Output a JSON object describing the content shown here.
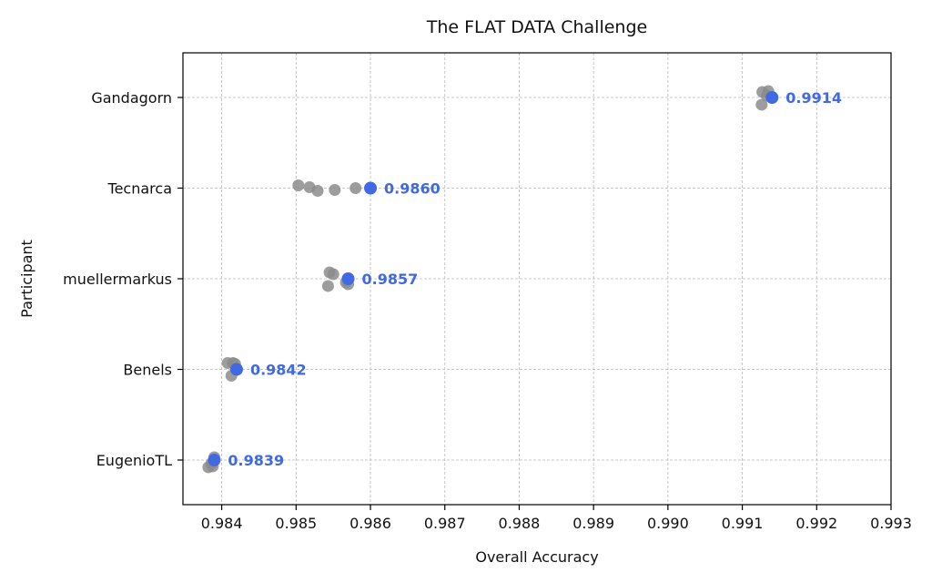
{
  "chart_data": {
    "type": "scatter",
    "title": "The FLAT DATA Challenge",
    "xlabel": "Overall Accuracy",
    "ylabel": "Participant",
    "xlim": [
      0.9835,
      0.993
    ],
    "xticks": [
      "0.984",
      "0.985",
      "0.986",
      "0.987",
      "0.988",
      "0.989",
      "0.990",
      "0.991",
      "0.992",
      "0.993"
    ],
    "categories": [
      "Gandagorn",
      "Tecnarca",
      "muellermarkus",
      "Benels",
      "EugenioTL"
    ],
    "grid": true,
    "colors": {
      "attempts": "#8c8c8c",
      "best": "#4169e1"
    },
    "series": [
      {
        "category": "Gandagorn",
        "best": 0.9914,
        "best_label": "0.9914",
        "attempts": [
          {
            "x": 0.99127,
            "j": 0.06
          },
          {
            "x": 0.99135,
            "j": 0.07
          },
          {
            "x": 0.99133,
            "j": 0.02
          },
          {
            "x": 0.99126,
            "j": -0.08
          }
        ]
      },
      {
        "category": "Tecnarca",
        "best": 0.986,
        "best_label": "0.9860",
        "attempts": [
          {
            "x": 0.98503,
            "j": 0.03
          },
          {
            "x": 0.98518,
            "j": 0.01
          },
          {
            "x": 0.98529,
            "j": -0.03
          },
          {
            "x": 0.98552,
            "j": -0.02
          },
          {
            "x": 0.9858,
            "j": 0.0
          }
        ]
      },
      {
        "category": "muellermarkus",
        "best": 0.9857,
        "best_label": "0.9857",
        "attempts": [
          {
            "x": 0.98545,
            "j": 0.07
          },
          {
            "x": 0.9855,
            "j": 0.05
          },
          {
            "x": 0.98543,
            "j": -0.08
          },
          {
            "x": 0.98567,
            "j": -0.04
          },
          {
            "x": 0.9857,
            "j": -0.06
          }
        ]
      },
      {
        "category": "Benels",
        "best": 0.9842,
        "best_label": "0.9842",
        "attempts": [
          {
            "x": 0.98408,
            "j": 0.07
          },
          {
            "x": 0.98415,
            "j": 0.07
          },
          {
            "x": 0.98418,
            "j": 0.06
          },
          {
            "x": 0.98413,
            "j": -0.07
          }
        ]
      },
      {
        "category": "EugenioTL",
        "best": 0.9839,
        "best_label": "0.9839",
        "attempts": [
          {
            "x": 0.9839,
            "j": 0.03
          },
          {
            "x": 0.98382,
            "j": -0.08
          },
          {
            "x": 0.98388,
            "j": -0.07
          },
          {
            "x": 0.98386,
            "j": -0.04
          }
        ]
      }
    ]
  }
}
